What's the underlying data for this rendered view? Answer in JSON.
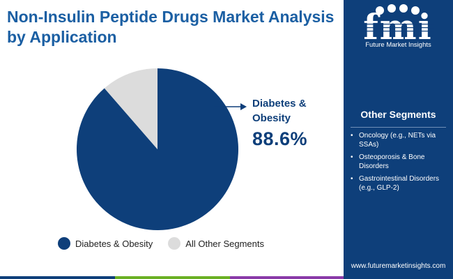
{
  "title": "Non-Insulin Peptide Drugs Market Analysis by Application",
  "chart_data": {
    "type": "pie",
    "title": "Non-Insulin Peptide Drugs Market Analysis by Application",
    "slices": [
      {
        "label": "Diabetes & Obesity",
        "value": 88.6,
        "color": "#0e3f7a"
      },
      {
        "label": "All Other Segments",
        "value": 11.4,
        "color": "#dcdcdc"
      }
    ],
    "callout": {
      "label": "Diabetes & Obesity",
      "value_text": "88.6%"
    },
    "legend_position": "bottom"
  },
  "legend": [
    {
      "label": "Diabetes & Obesity",
      "color": "#0e3f7a"
    },
    {
      "label": "All Other Segments",
      "color": "#dcdcdc"
    }
  ],
  "sidebar": {
    "logo_text": "fmi",
    "logo_caption": "Future Market Insights",
    "heading": "Other Segments",
    "items": [
      {
        "bullet": "•",
        "text": "Oncology (e.g., NETs via SSAs)"
      },
      {
        "bullet": "•",
        "text": "Osteoporosis & Bone Disorders"
      },
      {
        "bullet": "•",
        "text": "Gastrointestinal Disorders (e.g., GLP-2)"
      }
    ],
    "url": "www.futuremarketinsights.com",
    "background": "#0e3f7a"
  },
  "colors": {
    "title": "#1b5fa3",
    "accent_dark": "#0e3f7a",
    "bottom_bar": [
      "#0e3f7a",
      "#6ab023",
      "#8a3aa8",
      "#0e3f7a"
    ]
  }
}
